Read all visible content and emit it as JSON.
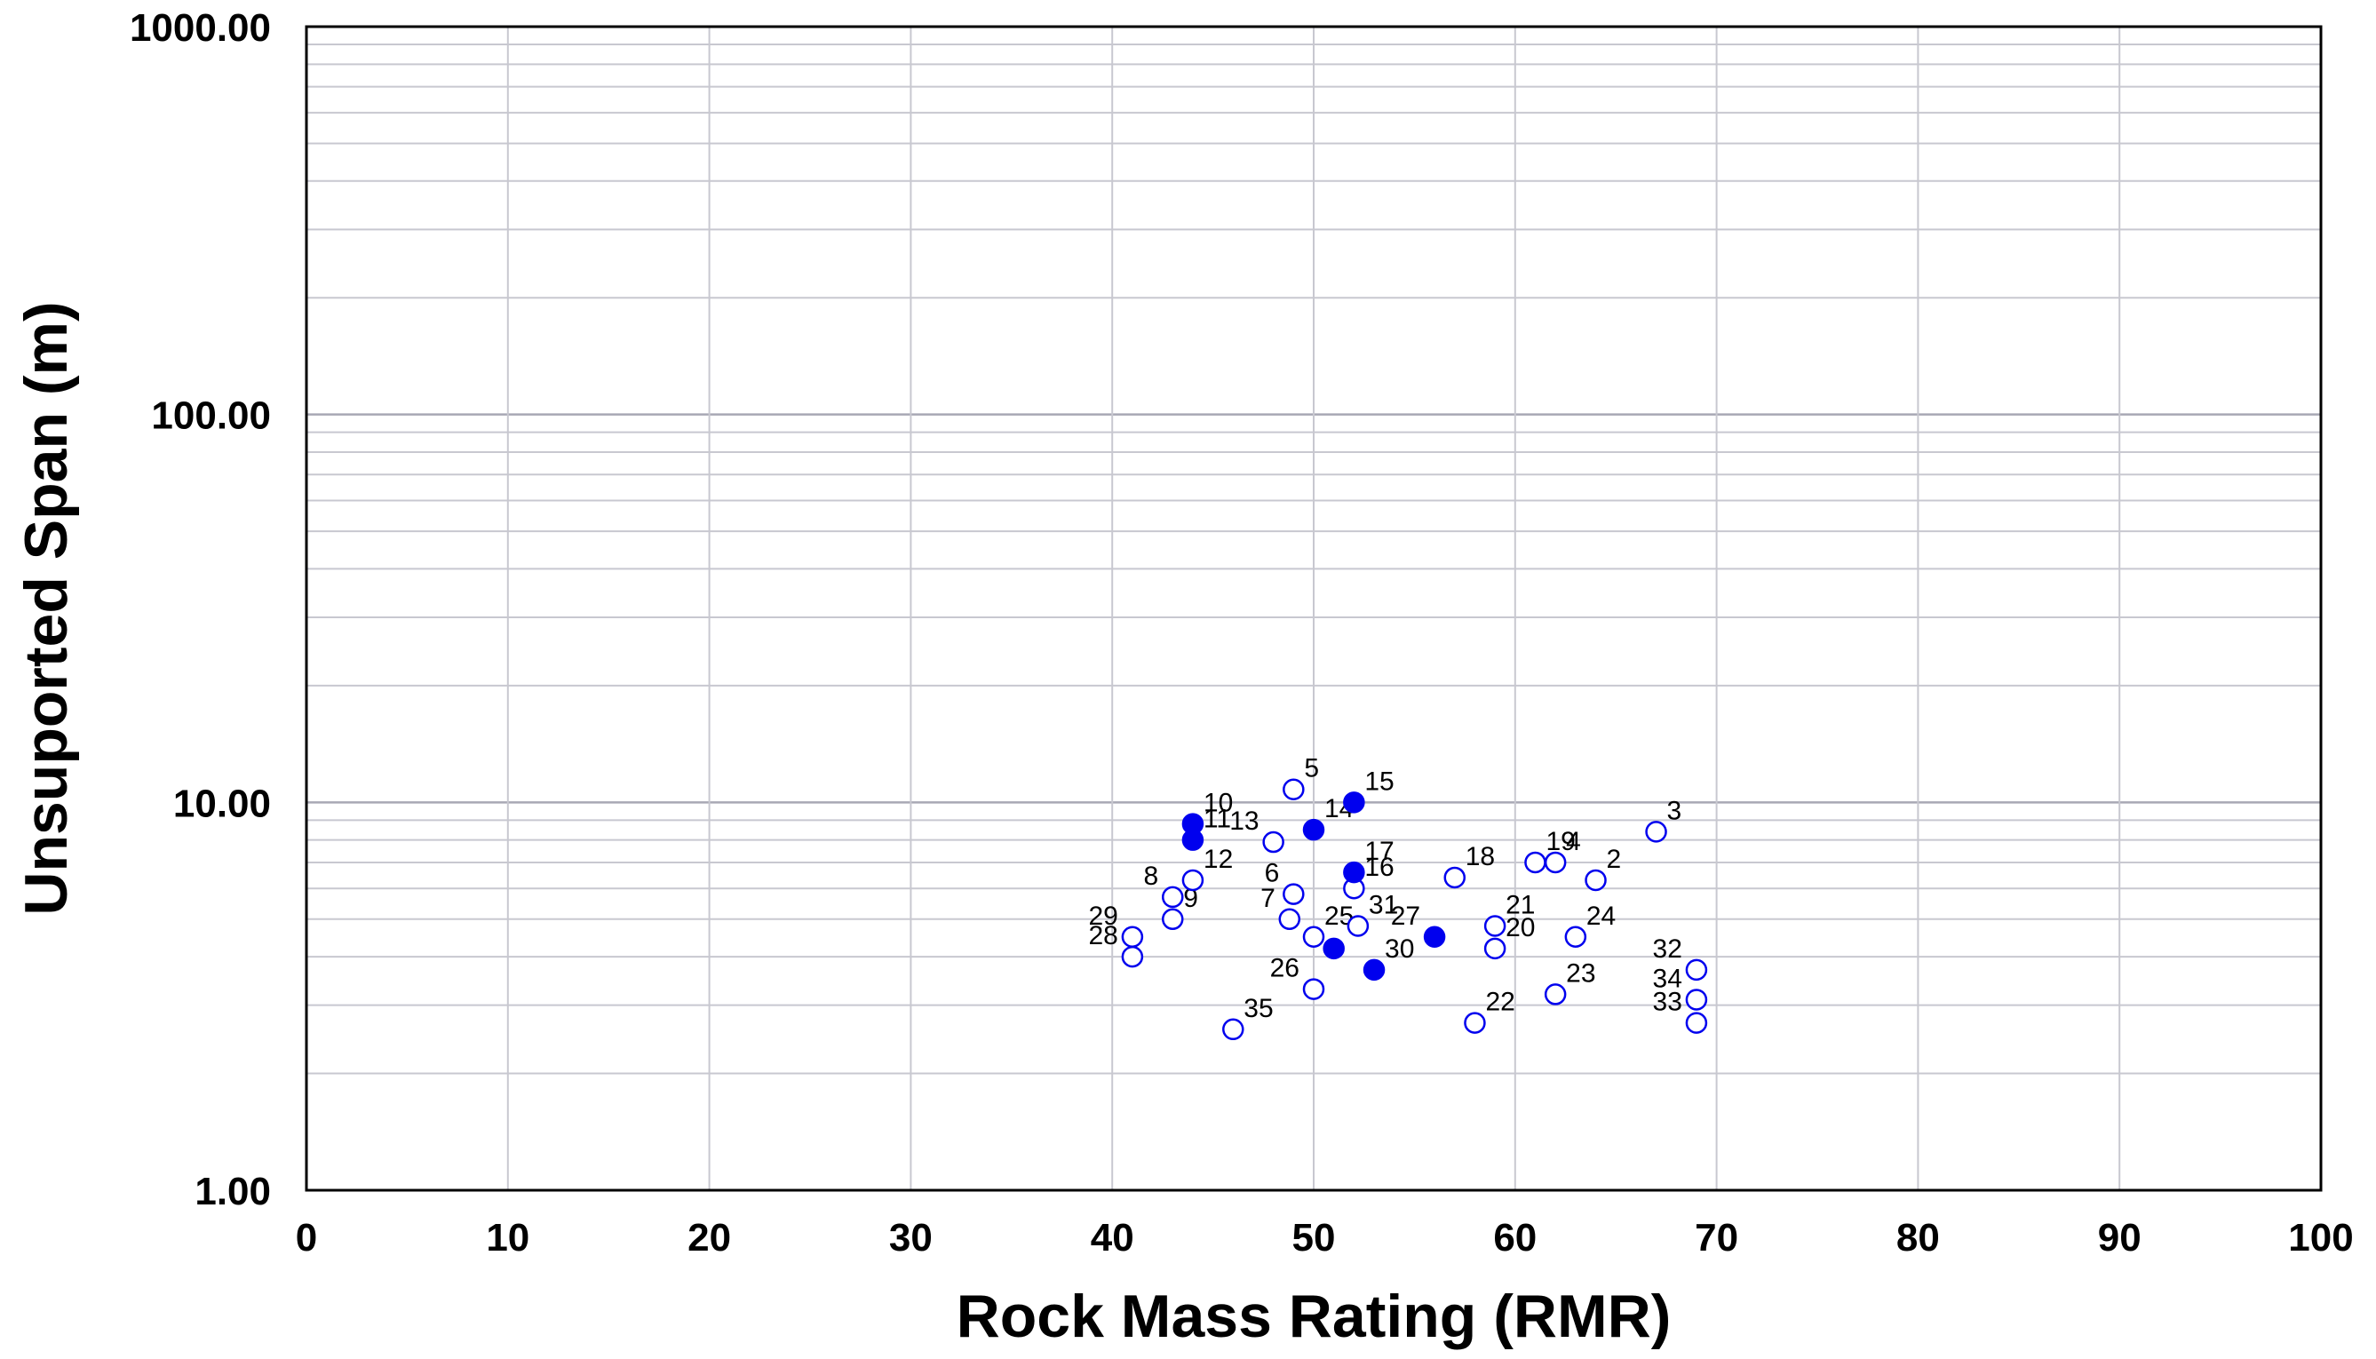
{
  "chart_data": {
    "type": "scatter",
    "title": "",
    "xlabel": "Rock Mass Rating (RMR)",
    "ylabel": "Unsuported Span (m)",
    "xlim": [
      0,
      100
    ],
    "ylim": [
      1,
      1000
    ],
    "yscale": "log",
    "grid": true,
    "x_ticks": [
      "0",
      "10",
      "20",
      "30",
      "40",
      "50",
      "60",
      "70",
      "80",
      "90",
      "100"
    ],
    "y_ticks": [
      "1.00",
      "10.00",
      "100.00",
      "1000.00"
    ],
    "colors": {
      "marker": "#0000ee",
      "grid": "#c8c8d0",
      "frame": "#000000"
    },
    "series": [
      {
        "name": "open",
        "filled": false,
        "points": [
          {
            "label": "2",
            "x": 64,
            "y": 6.3
          },
          {
            "label": "3",
            "x": 67,
            "y": 8.4
          },
          {
            "label": "4",
            "x": 62,
            "y": 7.0
          },
          {
            "label": "5",
            "x": 49,
            "y": 10.8
          },
          {
            "label": "6",
            "x": 49,
            "y": 5.8
          },
          {
            "label": "7",
            "x": 48.8,
            "y": 5.0
          },
          {
            "label": "8",
            "x": 43,
            "y": 5.7
          },
          {
            "label": "9",
            "x": 43,
            "y": 5.0
          },
          {
            "label": "12",
            "x": 44,
            "y": 6.3
          },
          {
            "label": "13",
            "x": 48,
            "y": 7.9
          },
          {
            "label": "16",
            "x": 52,
            "y": 6.0
          },
          {
            "label": "18",
            "x": 57,
            "y": 6.4
          },
          {
            "label": "19",
            "x": 61,
            "y": 7.0
          },
          {
            "label": "20",
            "x": 59,
            "y": 4.2
          },
          {
            "label": "21",
            "x": 59,
            "y": 4.8
          },
          {
            "label": "22",
            "x": 58,
            "y": 2.7
          },
          {
            "label": "23",
            "x": 62,
            "y": 3.2
          },
          {
            "label": "24",
            "x": 63,
            "y": 4.5
          },
          {
            "label": "25",
            "x": 50,
            "y": 4.5
          },
          {
            "label": "26",
            "x": 50,
            "y": 3.3
          },
          {
            "label": "28",
            "x": 41,
            "y": 4.0
          },
          {
            "label": "29",
            "x": 41,
            "y": 4.5
          },
          {
            "label": "31",
            "x": 52.2,
            "y": 4.8
          },
          {
            "label": "32",
            "x": 69,
            "y": 3.7
          },
          {
            "label": "33",
            "x": 69,
            "y": 2.7
          },
          {
            "label": "34",
            "x": 69,
            "y": 3.1
          },
          {
            "label": "35",
            "x": 46,
            "y": 2.6
          }
        ]
      },
      {
        "name": "filled",
        "filled": true,
        "points": [
          {
            "label": "10",
            "x": 44,
            "y": 8.8
          },
          {
            "label": "11",
            "x": 44,
            "y": 8.0
          },
          {
            "label": "14",
            "x": 50,
            "y": 8.5
          },
          {
            "label": "15",
            "x": 52,
            "y": 10.0
          },
          {
            "label": "17",
            "x": 52,
            "y": 6.6
          },
          {
            "label": "27",
            "x": 56,
            "y": 4.5
          },
          {
            "label": "30",
            "x": 53,
            "y": 3.7
          },
          {
            "label": "",
            "x": 51,
            "y": 4.2
          }
        ]
      }
    ]
  }
}
